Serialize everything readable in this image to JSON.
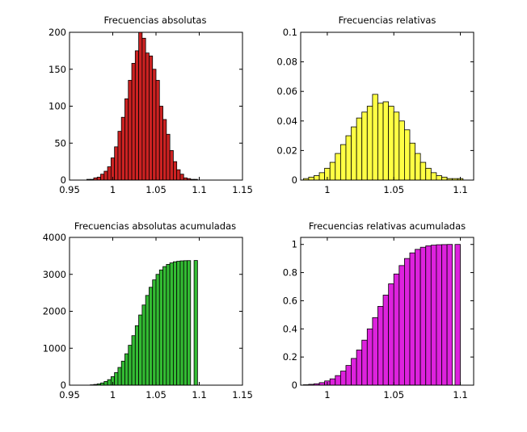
{
  "chart_data": [
    {
      "type": "bar",
      "title": "Frecuencias absolutas",
      "xlim": [
        0.95,
        1.15
      ],
      "ylim": [
        0,
        200
      ],
      "xticks": [
        0.95,
        1,
        1.05,
        1.1,
        1.15
      ],
      "xtick_labels": [
        "0.95",
        "1",
        "1.05",
        "1.1",
        "1.15"
      ],
      "yticks": [
        0,
        50,
        100,
        150,
        200
      ],
      "ytick_labels": [
        "0",
        "50",
        "100",
        "150",
        "200"
      ],
      "color": "#cc2222",
      "x": [
        0.972,
        0.976,
        0.98,
        0.984,
        0.988,
        0.992,
        0.996,
        1.0,
        1.004,
        1.008,
        1.012,
        1.016,
        1.02,
        1.024,
        1.028,
        1.032,
        1.036,
        1.04,
        1.044,
        1.048,
        1.052,
        1.056,
        1.06,
        1.064,
        1.068,
        1.072,
        1.076,
        1.08,
        1.084,
        1.088,
        1.092,
        1.096
      ],
      "values": [
        1,
        1,
        3,
        4,
        8,
        12,
        18,
        30,
        45,
        66,
        85,
        110,
        135,
        158,
        175,
        200,
        192,
        172,
        168,
        150,
        135,
        100,
        82,
        62,
        40,
        25,
        14,
        8,
        3,
        2,
        1,
        1
      ]
    },
    {
      "type": "bar",
      "title": "Frecuencias relativas",
      "xlim": [
        0.98,
        1.11
      ],
      "ylim": [
        0,
        0.1
      ],
      "xticks": [
        1,
        1.05,
        1.1
      ],
      "xtick_labels": [
        "1",
        "1.05",
        "1.1"
      ],
      "yticks": [
        0,
        0.02,
        0.04,
        0.06,
        0.08,
        0.1
      ],
      "ytick_labels": [
        "0",
        "0.02",
        "0.04",
        "0.06",
        "0.08",
        "0.1"
      ],
      "color": "#ffff44",
      "x": [
        0.984,
        0.988,
        0.992,
        0.996,
        1.0,
        1.004,
        1.008,
        1.012,
        1.016,
        1.02,
        1.024,
        1.028,
        1.032,
        1.036,
        1.04,
        1.044,
        1.048,
        1.052,
        1.056,
        1.06,
        1.064,
        1.068,
        1.072,
        1.076,
        1.08,
        1.084,
        1.088,
        1.092,
        1.096,
        1.1
      ],
      "values": [
        0.001,
        0.002,
        0.003,
        0.005,
        0.008,
        0.012,
        0.018,
        0.024,
        0.03,
        0.036,
        0.042,
        0.046,
        0.05,
        0.058,
        0.052,
        0.053,
        0.05,
        0.046,
        0.04,
        0.034,
        0.025,
        0.018,
        0.012,
        0.008,
        0.005,
        0.003,
        0.002,
        0.001,
        0.001,
        0.001
      ]
    },
    {
      "type": "bar",
      "title": "Frecuencias absolutas acumuladas",
      "xlim": [
        0.95,
        1.15
      ],
      "ylim": [
        0,
        4000
      ],
      "xticks": [
        0.95,
        1,
        1.05,
        1.1,
        1.15
      ],
      "xtick_labels": [
        "0.95",
        "1",
        "1.05",
        "1.1",
        "1.15"
      ],
      "yticks": [
        0,
        1000,
        2000,
        3000,
        4000
      ],
      "ytick_labels": [
        "0",
        "1000",
        "2000",
        "3000",
        "4000"
      ],
      "color": "#33bb33",
      "x": [
        0.976,
        0.98,
        0.984,
        0.988,
        0.992,
        0.996,
        1.0,
        1.004,
        1.008,
        1.012,
        1.016,
        1.02,
        1.024,
        1.028,
        1.032,
        1.036,
        1.04,
        1.044,
        1.048,
        1.052,
        1.056,
        1.06,
        1.064,
        1.068,
        1.072,
        1.076,
        1.08,
        1.084,
        1.088,
        1.096
      ],
      "values": [
        10,
        20,
        35,
        60,
        100,
        150,
        230,
        340,
        480,
        650,
        850,
        1080,
        1340,
        1610,
        1900,
        2170,
        2430,
        2650,
        2850,
        3000,
        3120,
        3210,
        3270,
        3310,
        3340,
        3355,
        3365,
        3370,
        3372,
        3375
      ]
    },
    {
      "type": "bar",
      "title": "Frecuencias relativas acumuladas",
      "xlim": [
        0.98,
        1.11
      ],
      "ylim": [
        0,
        1.05
      ],
      "xticks": [
        1,
        1.05,
        1.1
      ],
      "xtick_labels": [
        "1",
        "1.05",
        "1.1"
      ],
      "yticks": [
        0,
        0.2,
        0.4,
        0.6,
        0.8,
        1
      ],
      "ytick_labels": [
        "0",
        "0.2",
        "0.4",
        "0.6",
        "0.8",
        "1"
      ],
      "color": "#dd22dd",
      "x": [
        0.984,
        0.988,
        0.992,
        0.996,
        1.0,
        1.004,
        1.008,
        1.012,
        1.016,
        1.02,
        1.024,
        1.028,
        1.032,
        1.036,
        1.04,
        1.044,
        1.048,
        1.052,
        1.056,
        1.06,
        1.064,
        1.068,
        1.072,
        1.076,
        1.08,
        1.084,
        1.088,
        1.092,
        1.098
      ],
      "values": [
        0.003,
        0.006,
        0.01,
        0.018,
        0.03,
        0.045,
        0.068,
        0.1,
        0.14,
        0.19,
        0.25,
        0.32,
        0.4,
        0.48,
        0.56,
        0.64,
        0.72,
        0.79,
        0.85,
        0.9,
        0.94,
        0.965,
        0.98,
        0.99,
        0.995,
        0.998,
        0.999,
        1.0,
        1.0
      ]
    }
  ]
}
